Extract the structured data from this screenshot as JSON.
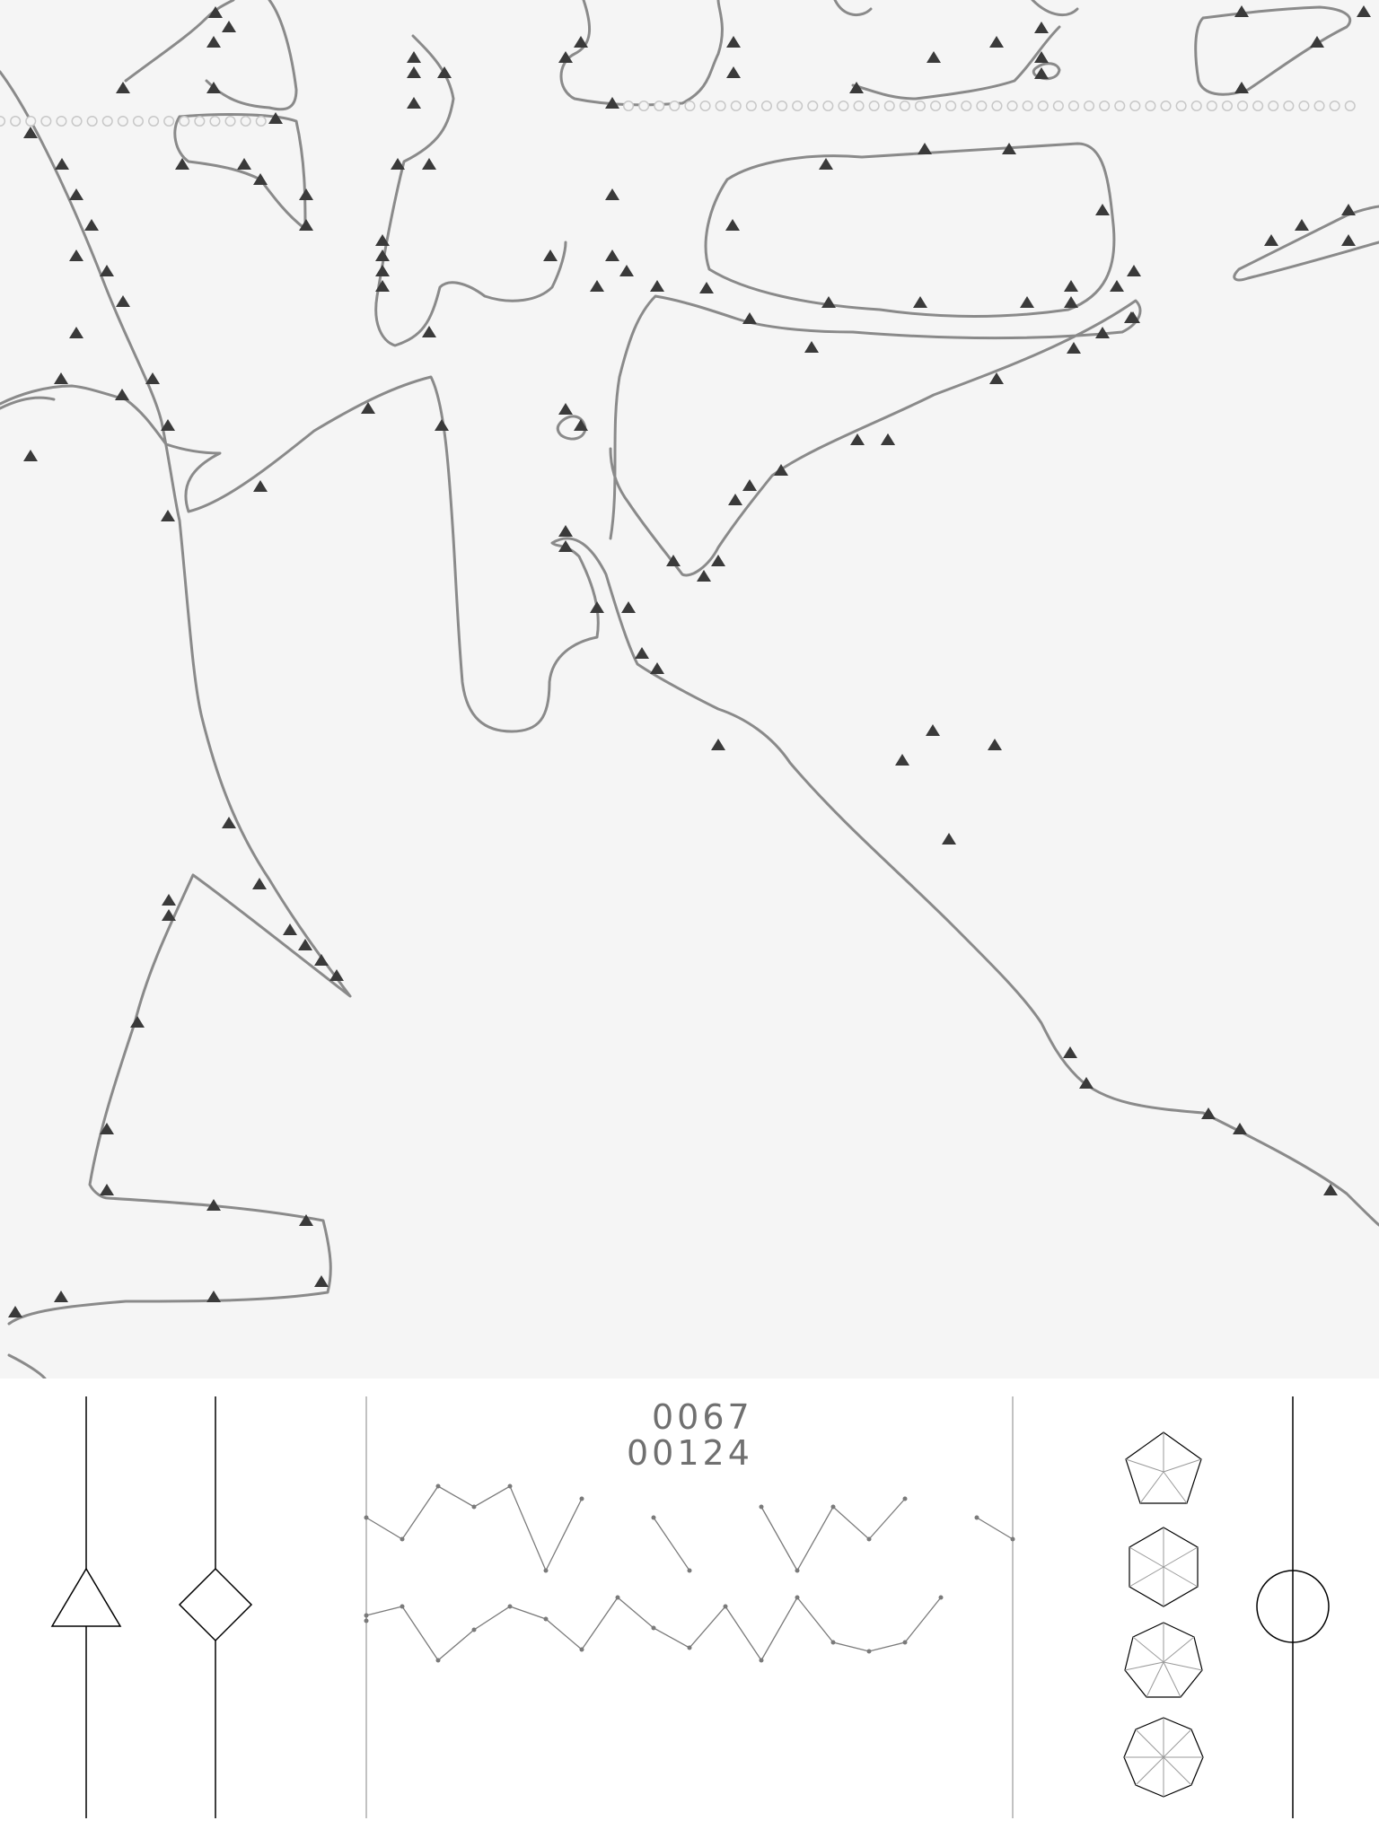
{
  "map": {
    "background_color": "#f5f5f5",
    "coastline_color": "#8a8a8a",
    "marker_color": "#3a3a3a",
    "route_color": "#b0b0b0"
  },
  "panel": {
    "counter_top": "0067",
    "counter_bottom": "00124",
    "line_color": "#000000",
    "trace_color": "#7a7a7a"
  }
}
